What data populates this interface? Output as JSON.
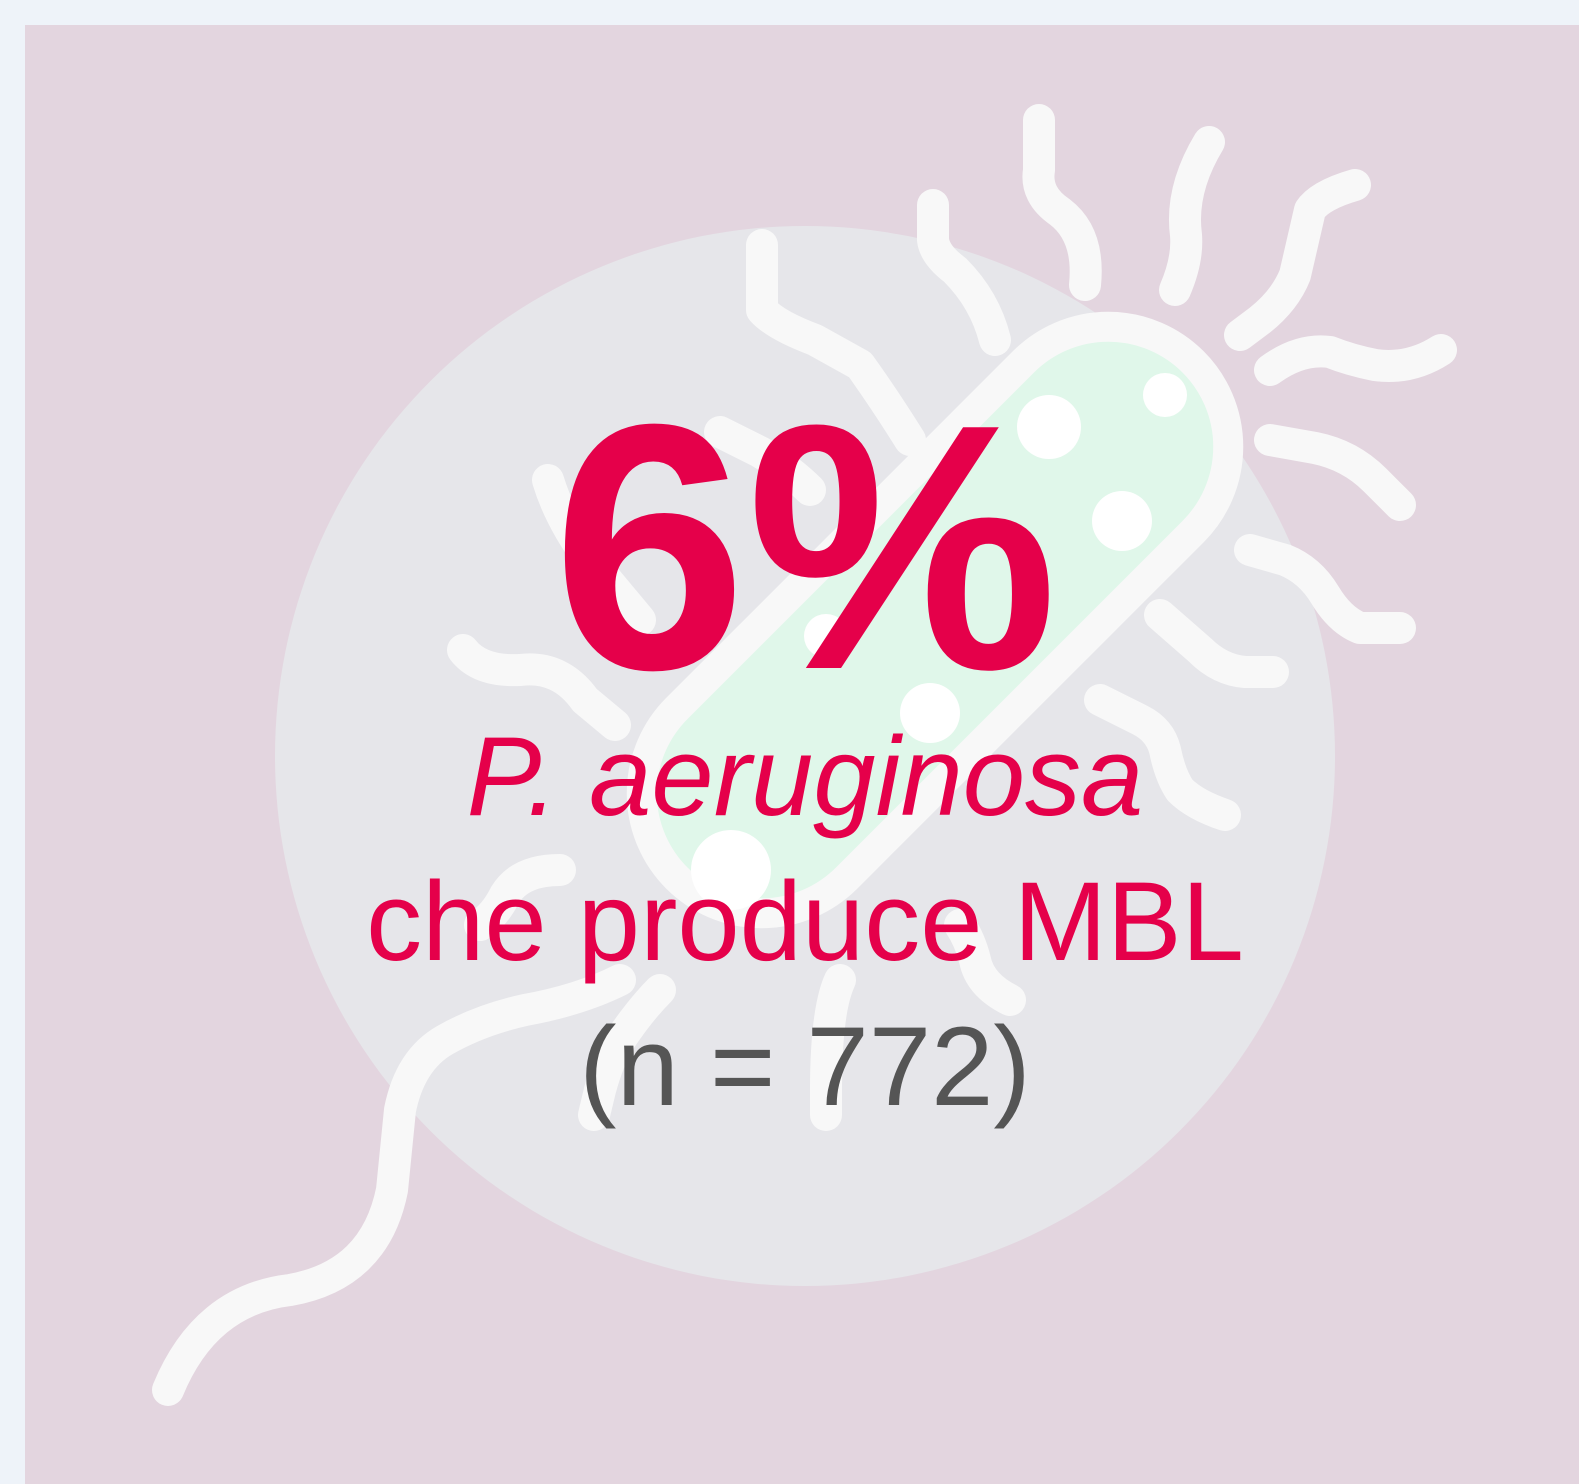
{
  "stat": {
    "value": "6%",
    "organism": "P. aeruginosa",
    "description": "che produce MBL",
    "sample": "(n = 772)"
  }
}
